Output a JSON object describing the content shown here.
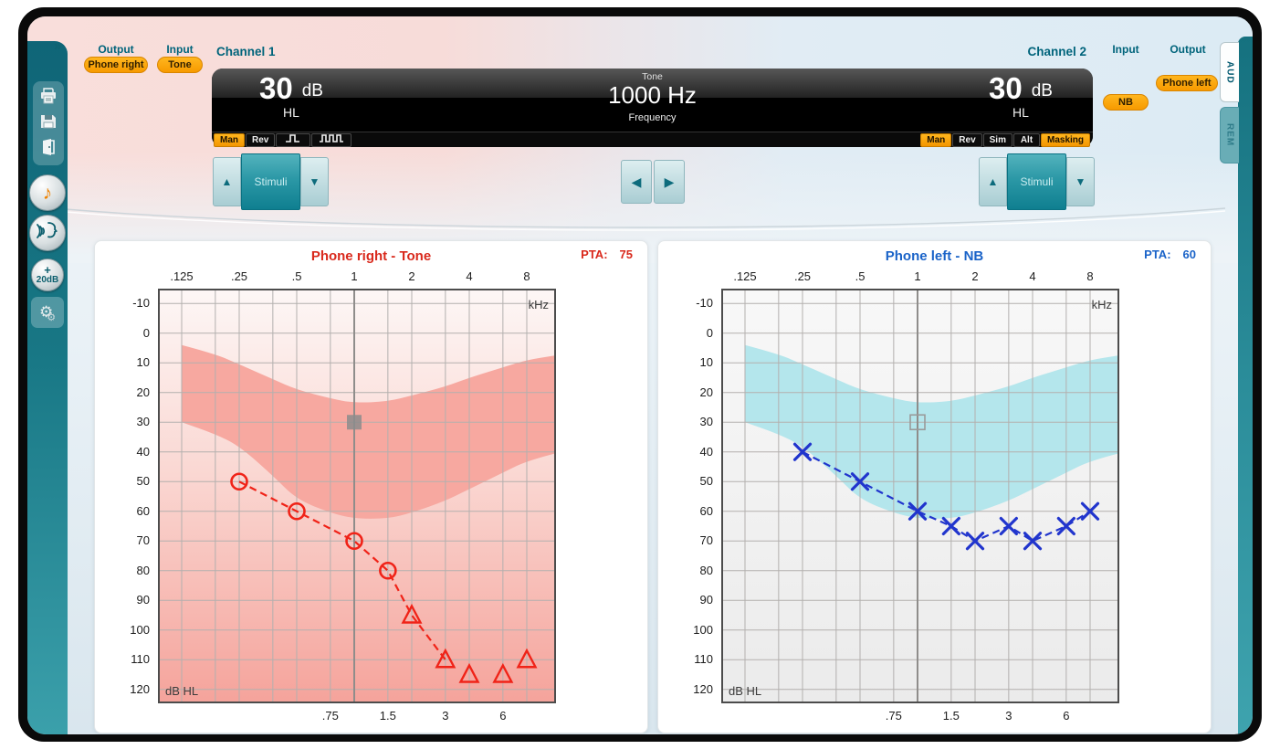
{
  "icons": {
    "up": "▲",
    "down": "▼",
    "left": "◀",
    "right": "▶"
  },
  "sidebar": {
    "expand_icon": "»",
    "panel_buttons": [
      {
        "name": "print"
      },
      {
        "name": "save"
      },
      {
        "name": "exit"
      }
    ],
    "round_buttons": [
      {
        "name": "tone",
        "glyph": "♪"
      },
      {
        "name": "talk-forward"
      },
      {
        "name": "gain-20db",
        "label_top": "+",
        "label_bottom": "20dB"
      }
    ],
    "settings_button": {
      "name": "settings",
      "glyph": "⚙"
    }
  },
  "side_tabs": [
    {
      "label": "AUD",
      "active": true
    },
    {
      "label": "REM",
      "active": false
    }
  ],
  "header": {
    "channel1": {
      "title": "Channel 1",
      "output_label": "Output",
      "output_value": "Phone right",
      "input_label": "Input",
      "input_value": "Tone",
      "level": "30",
      "level_unit": "dB",
      "level_scale": "HL",
      "modes": [
        {
          "label": "Man",
          "active": true
        },
        {
          "label": "Rev",
          "active": false
        },
        {
          "icon": "pulse-single-icon",
          "active": false
        },
        {
          "icon": "pulse-multi-icon",
          "active": false
        }
      ],
      "stimuli_label": "Stimuli"
    },
    "center": {
      "signal": "Tone",
      "frequency": "1000 Hz",
      "frequency_label": "Frequency"
    },
    "channel2": {
      "title": "Channel 2",
      "input_label": "Input",
      "input_value": "NB",
      "output_label": "Output",
      "output_value": "Phone left",
      "level": "30",
      "level_unit": "dB",
      "level_scale": "HL",
      "modes": [
        {
          "label": "Man",
          "active": true
        },
        {
          "label": "Rev",
          "active": false
        },
        {
          "label": "Sim",
          "active": false
        },
        {
          "label": "Alt",
          "active": false
        },
        {
          "label": "Masking",
          "active": true
        }
      ],
      "stimuli_label": "Stimuli"
    }
  },
  "chart_data": [
    {
      "type": "scatter",
      "id": "right-ear-audiogram",
      "title": "Phone right - Tone",
      "accent": "#d9291c",
      "pta": {
        "label": "PTA:",
        "value": "75"
      },
      "x_axis": {
        "unit": "kHz",
        "scale": "log-octave",
        "top_ticks": [
          [
            0.125,
            ".125"
          ],
          [
            0.25,
            ".25"
          ],
          [
            0.5,
            ".5"
          ],
          [
            1,
            "1"
          ],
          [
            2,
            "2"
          ],
          [
            4,
            "4"
          ],
          [
            8,
            "8"
          ]
        ],
        "bottom_ticks": [
          [
            0.75,
            ".75"
          ],
          [
            1.5,
            "1.5"
          ],
          [
            3,
            "3"
          ],
          [
            6,
            "6"
          ]
        ],
        "minor_freqs": [
          0.1875,
          0.375,
          0.75,
          1.5,
          3,
          6
        ]
      },
      "y_axis": {
        "unit": "dB HL",
        "min": -10,
        "max": 120,
        "step": 10
      },
      "grid_color": "#b3b0ae",
      "axis_color": "#4c4c4c",
      "background": {
        "top": "#fdf7f6",
        "mid": "#fad7d2",
        "bottom": "#f5a39b"
      },
      "band": {
        "color": "#f7a8a0",
        "upper": [
          [
            0.125,
            4
          ],
          [
            0.1875,
            7
          ],
          [
            0.25,
            10.5
          ],
          [
            0.375,
            15.5
          ],
          [
            0.5,
            19
          ],
          [
            0.75,
            22
          ],
          [
            1,
            23.5
          ],
          [
            1.5,
            23
          ],
          [
            2,
            21
          ],
          [
            3,
            18
          ],
          [
            4,
            15
          ],
          [
            6,
            11.5
          ],
          [
            8,
            9
          ],
          [
            11.3,
            7.5
          ]
        ],
        "lower": [
          [
            0.125,
            30
          ],
          [
            0.1875,
            34
          ],
          [
            0.25,
            38
          ],
          [
            0.375,
            48
          ],
          [
            0.5,
            56
          ],
          [
            0.75,
            60.5
          ],
          [
            1,
            62.5
          ],
          [
            1.5,
            62.5
          ],
          [
            2,
            60.5
          ],
          [
            3,
            56.5
          ],
          [
            4,
            52.5
          ],
          [
            6,
            47
          ],
          [
            8,
            43
          ],
          [
            11.3,
            40.5
          ]
        ]
      },
      "cursor": {
        "freq": 1,
        "level": 30,
        "style": "filled-square",
        "color": "#8c8c8c",
        "line_color": "#8f8d8b"
      },
      "series": [
        {
          "name": "air-conduction-threshold",
          "symbol": "circle",
          "color": "#f02318",
          "points": [
            [
              0.25,
              50
            ],
            [
              0.5,
              60
            ],
            [
              1,
              70
            ],
            [
              1.5,
              80
            ]
          ]
        },
        {
          "name": "no-response",
          "symbol": "triangle",
          "color": "#f02318",
          "points": [
            [
              2,
              95
            ],
            [
              3,
              110
            ],
            [
              4,
              115
            ],
            [
              6,
              115
            ],
            [
              8,
              110
            ]
          ]
        }
      ],
      "line": {
        "color": "#f02318",
        "dash": [
          8,
          5
        ],
        "points": [
          [
            0.25,
            50
          ],
          [
            0.5,
            60
          ],
          [
            1,
            70
          ],
          [
            1.5,
            80
          ],
          [
            2,
            95
          ],
          [
            3,
            110
          ]
        ]
      }
    },
    {
      "type": "scatter",
      "id": "left-ear-audiogram",
      "title": "Phone left - NB",
      "accent": "#1a63c8",
      "pta": {
        "label": "PTA:",
        "value": "60"
      },
      "x_axis": {
        "unit": "kHz",
        "scale": "log-octave",
        "top_ticks": [
          [
            0.125,
            ".125"
          ],
          [
            0.25,
            ".25"
          ],
          [
            0.5,
            ".5"
          ],
          [
            1,
            "1"
          ],
          [
            2,
            "2"
          ],
          [
            4,
            "4"
          ],
          [
            8,
            "8"
          ]
        ],
        "bottom_ticks": [
          [
            0.75,
            ".75"
          ],
          [
            1.5,
            "1.5"
          ],
          [
            3,
            "3"
          ],
          [
            6,
            "6"
          ]
        ],
        "minor_freqs": [
          0.1875,
          0.375,
          0.75,
          1.5,
          3,
          6
        ]
      },
      "y_axis": {
        "unit": "dB HL",
        "min": -10,
        "max": 120,
        "step": 10
      },
      "grid_color": "#b3b0ae",
      "axis_color": "#4c4c4c",
      "background": {
        "top": "#f8f8f8",
        "mid": "#f2f2f2",
        "bottom": "#ebebeb"
      },
      "band": {
        "color": "#b4e6ec",
        "upper": [
          [
            0.125,
            4
          ],
          [
            0.1875,
            7
          ],
          [
            0.25,
            10.5
          ],
          [
            0.375,
            15.5
          ],
          [
            0.5,
            19
          ],
          [
            0.75,
            22
          ],
          [
            1,
            23.5
          ],
          [
            1.5,
            23
          ],
          [
            2,
            21
          ],
          [
            3,
            18
          ],
          [
            4,
            15
          ],
          [
            6,
            11.5
          ],
          [
            8,
            9
          ],
          [
            11.3,
            7.5
          ]
        ],
        "lower": [
          [
            0.125,
            30
          ],
          [
            0.1875,
            34
          ],
          [
            0.25,
            38
          ],
          [
            0.375,
            48
          ],
          [
            0.5,
            56
          ],
          [
            0.75,
            60.5
          ],
          [
            1,
            62.5
          ],
          [
            1.5,
            62.5
          ],
          [
            2,
            60.5
          ],
          [
            3,
            56.5
          ],
          [
            4,
            52.5
          ],
          [
            6,
            47
          ],
          [
            8,
            43
          ],
          [
            11.3,
            40.5
          ]
        ]
      },
      "cursor": {
        "freq": 1,
        "level": 30,
        "style": "open-square",
        "color": "#9a9a9a",
        "line_color": "#8f8d8b"
      },
      "series": [
        {
          "name": "air-conduction-threshold",
          "symbol": "x",
          "color": "#2135cd",
          "points": [
            [
              0.25,
              40
            ],
            [
              0.5,
              50
            ],
            [
              1,
              60
            ],
            [
              1.5,
              65
            ],
            [
              2,
              70
            ],
            [
              3,
              65
            ],
            [
              4,
              70
            ],
            [
              6,
              65
            ],
            [
              8,
              60
            ]
          ]
        }
      ],
      "line": {
        "color": "#2135cd",
        "dash": [
          8,
          5
        ],
        "points": [
          [
            0.25,
            40
          ],
          [
            0.5,
            50
          ],
          [
            1,
            60
          ],
          [
            1.5,
            65
          ],
          [
            2,
            70
          ],
          [
            3,
            65
          ],
          [
            4,
            70
          ],
          [
            6,
            65
          ],
          [
            8,
            60
          ]
        ]
      }
    }
  ]
}
